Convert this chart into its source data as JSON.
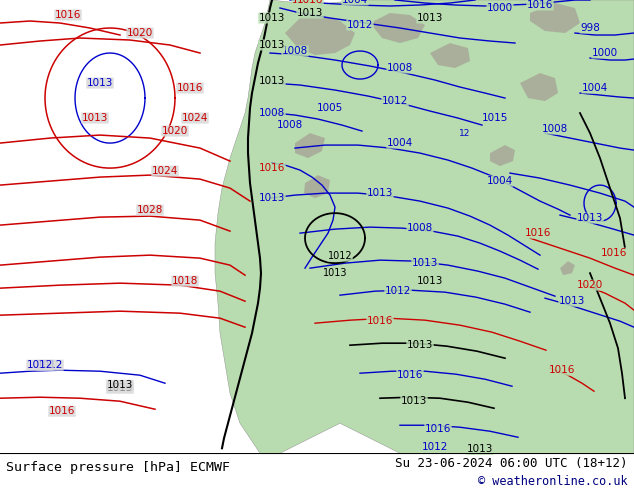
{
  "title_left": "Surface pressure [hPa] ECMWF",
  "title_right": "Su 23-06-2024 06:00 UTC (18+12)",
  "copyright": "© weatheronline.co.uk",
  "ocean_color": "#d8d8d8",
  "land_color": "#b8dcb0",
  "mountain_color": "#a8a898",
  "bottom_bar_color": "#f0f0f0",
  "figsize": [
    6.34,
    4.9
  ],
  "dpi": 100,
  "red_isobar_color": "#cc0000",
  "blue_isobar_color": "#0000cc",
  "black_contour_color": "#000000"
}
